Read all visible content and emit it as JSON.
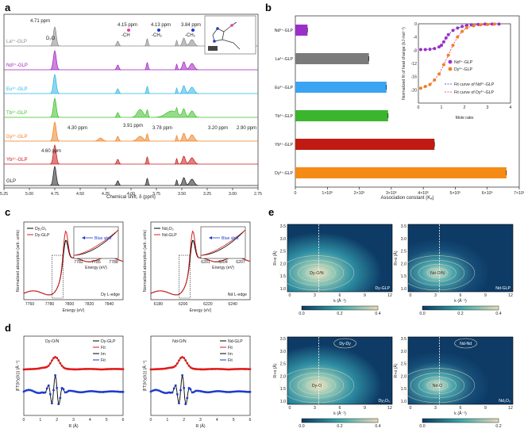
{
  "panels": {
    "a": "a",
    "b": "b",
    "c": "c",
    "d": "d",
    "e": "e"
  },
  "colors": {
    "La": "#888888",
    "Nd": "#a020c0",
    "Eu": "#2bb6e8",
    "Tb": "#3cbf2a",
    "Dy": "#f08020",
    "Yb": "#c81818",
    "GLP": "#222222",
    "bar_Nd": "#9b30c8",
    "bar_La": "#7b7b7b",
    "bar_Eu": "#3aa4f2",
    "bar_Tb": "#3cb52e",
    "bar_Yb": "#c01a12",
    "bar_Dy": "#f58a14",
    "fit_Nd": "#2a2aee",
    "fit_Dy": "#e8286e",
    "heat_dark": "#0c3a64",
    "heat_mid": "#3aa7a7",
    "heat_light": "#e6d9b8"
  },
  "panel_a": {
    "xlabel": "Chemical shift, δ (ppm)",
    "ticks": [
      "5.25",
      "5.00",
      "4.75",
      "4.50",
      "4.25",
      "4.00",
      "3.75",
      "3.50",
      "3.25",
      "3.00",
      "2.75"
    ],
    "traces": [
      "La³⁺-GLP",
      "Nd³⁺-GLP",
      "Eu³⁺-GLP",
      "Tb³⁺-GLP",
      "Dy³⁺-GLP",
      "Yb³⁺-GLP",
      "GLP"
    ],
    "annotations": {
      "d2o_ppm": "4.71 ppm",
      "d2o": "D₂O",
      "ch_ppm": "4.15 ppm",
      "ch": "-CH",
      "ch2a_ppm": "4.13 ppm",
      "ch2a": "-CH₂",
      "ch2b_ppm": "3.84 ppm",
      "ch2b": "-CH₂",
      "dy_430": "4.30 ppm",
      "dy_391": "3.91 ppm",
      "dy_378": "3.78 ppm",
      "dy_320": "3.20 ppm",
      "dy_290": "2.90 ppm",
      "yb_460": "4.60 ppm"
    }
  },
  "chart_data": [
    {
      "type": "bar",
      "title": "",
      "categories": [
        "Nd³⁺-GLP",
        "La³⁺-GLP",
        "Eu³⁺-GLP",
        "Tb³⁺-GLP",
        "Yb³⁺-GLP",
        "Dy³⁺-GLP"
      ],
      "values": [
        380000,
        2300000,
        2850000,
        2900000,
        4350000,
        6600000
      ],
      "xlim": [
        0,
        7000000
      ],
      "xticks": [
        "0",
        "1×10⁶",
        "2×10⁶",
        "3×10⁶",
        "4×10⁶",
        "5×10⁶",
        "6×10⁶",
        "7×10⁶"
      ],
      "xlabel": "Association constant (Kₐ)"
    },
    {
      "type": "scatter",
      "xlabel": "Mole ratio",
      "ylabel": "Normalized fit of heat change (kJ mol⁻¹)",
      "xlim": [
        0,
        4
      ],
      "ylim": [
        -24,
        0
      ],
      "xticks": [
        "0",
        "1",
        "2",
        "3",
        "4"
      ],
      "yticks": [
        "0",
        "-4",
        "-8",
        "-12",
        "-16",
        "-20"
      ],
      "series": [
        {
          "name": "Nd³⁺-GLP",
          "x": [
            0.1,
            0.3,
            0.5,
            0.7,
            0.9,
            1.0,
            1.1,
            1.2,
            1.3,
            1.5,
            1.7,
            1.9,
            2.1,
            2.3,
            2.6,
            2.9,
            3.2,
            3.5
          ],
          "y": [
            -7.8,
            -7.8,
            -7.7,
            -7.5,
            -7,
            -6.5,
            -5.5,
            -4.3,
            -3.3,
            -2,
            -1.3,
            -0.8,
            -0.5,
            -0.3,
            -0.2,
            -0.1,
            -0.1,
            -0.1
          ]
        },
        {
          "name": "Dy³⁺-GLP",
          "x": [
            0.1,
            0.3,
            0.5,
            0.7,
            0.9,
            1.1,
            1.3,
            1.5,
            1.7,
            1.9,
            2.1,
            2.4,
            2.7,
            3.0,
            3.3
          ],
          "y": [
            -19.5,
            -19,
            -18.4,
            -17,
            -15.2,
            -12.4,
            -9.5,
            -6.5,
            -4,
            -2.3,
            -1.2,
            -0.6,
            -0.3,
            -0.2,
            -0.1
          ]
        }
      ],
      "legend": [
        "Nd³⁺-GLP",
        "Dy³⁺-GLP",
        "Fit curve of Nd³⁺-GLP",
        "Fit curve of Dy³⁺-GLP"
      ]
    }
  ],
  "panel_c": {
    "left": {
      "legend": [
        "Dy₂O₃",
        "Dy-GLP"
      ],
      "edge": "Dy L-edge",
      "xlabel": "Energy (eV)",
      "ylabel": "Normalized absorption (arb. units)",
      "xticks": [
        "7760",
        "7780",
        "7800",
        "7820",
        "7840"
      ],
      "inset_xticks": [
        "7782",
        "7785",
        "7788"
      ],
      "inset_label": "Blue shift",
      "inset_xlabel": "Energy (eV)",
      "inset_ylabel": "Normalized absorption"
    },
    "right": {
      "legend": [
        "Nd₂O₃",
        "Nd-GLP"
      ],
      "edge": "Nd L-edge",
      "xlabel": "Energy (eV)",
      "ylabel": "Normalized absorption (arb. units)",
      "xticks": [
        "6180",
        "6200",
        "6220",
        "6240"
      ],
      "inset_xticks": [
        "6201",
        "6204",
        "6207"
      ],
      "inset_label": "Blue shift",
      "inset_xlabel": "Energy (eV)",
      "inset_ylabel": "Normalized absorption"
    }
  },
  "panel_d": {
    "left": {
      "peak": "Dy-O/N",
      "legend": [
        "Dy-GLP",
        "Fit",
        "Im",
        "Fit"
      ],
      "xlabel": "R (Å)",
      "ylabel": "|FT(k³χ(k))| (Å⁻⁴)",
      "xticks": [
        "0",
        "1",
        "2",
        "3",
        "4",
        "5",
        "6"
      ]
    },
    "right": {
      "peak": "Nd-O/N",
      "legend": [
        "Nd-GLP",
        "Fit",
        "Im",
        "Fit"
      ],
      "xlabel": "R (Å)",
      "ylabel": "|FT(k³χ(k))| (Å⁻⁴)",
      "xticks": [
        "0",
        "1",
        "2",
        "3",
        "4",
        "5",
        "6"
      ]
    }
  },
  "panel_e": {
    "yticks": [
      "3.5",
      "3.0",
      "2.5",
      "2.0",
      "1.5",
      "1.0"
    ],
    "xticks": [
      "0",
      "3",
      "6",
      "9",
      "12"
    ],
    "xlabel": "k (Å⁻¹)",
    "ylabel": "R+α (Å)",
    "maps": [
      {
        "peak": "Dy-O/N",
        "label": "Dy-GLP"
      },
      {
        "peak": "Nd-O/N",
        "label": "Nd-GLP"
      },
      {
        "peak": "Dy-O",
        "peak2": "Dy-Dy",
        "label": "Dy₂O₃"
      },
      {
        "peak": "Nd-O",
        "peak2": "Nd-Nd",
        "label": "Nd₂O₃"
      }
    ],
    "colorbar1": [
      "0.0",
      "0.2",
      "0.4"
    ],
    "colorbar2": [
      "0.0",
      "0.2"
    ]
  }
}
